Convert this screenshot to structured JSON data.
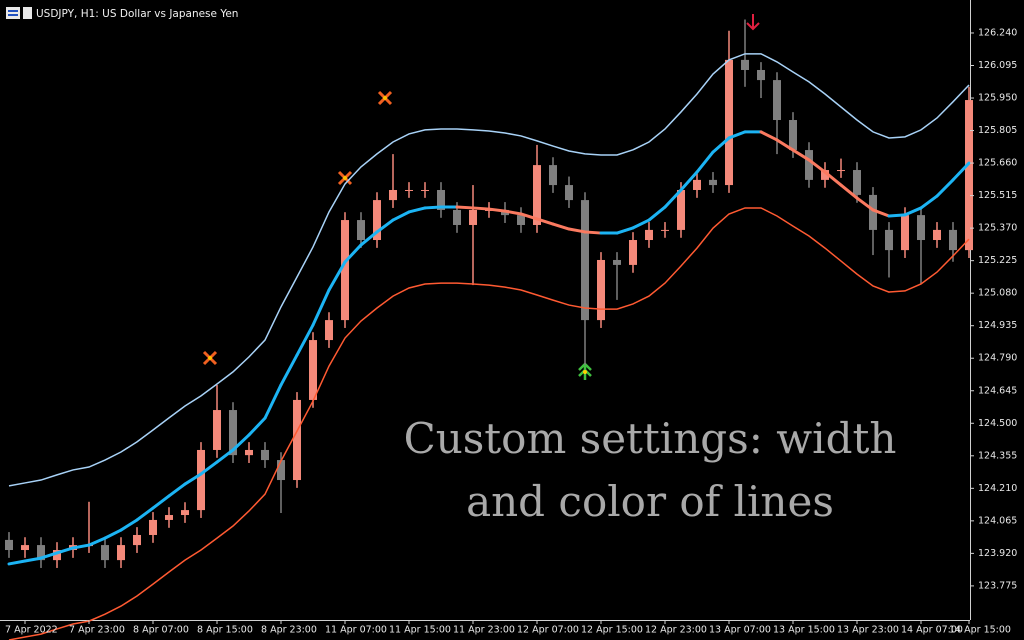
{
  "chart_data": {
    "type": "candlestick",
    "title": "USDJPY, H1:  US Dollar vs Japanese Yen",
    "annotation": [
      "Custom settings: width",
      "and color of lines"
    ],
    "categories": [
      null,
      "7 Apr 2022",
      null,
      null,
      null,
      "7 Apr 23:00",
      null,
      null,
      null,
      "8 Apr 07:00",
      null,
      null,
      null,
      "8 Apr 15:00",
      null,
      null,
      null,
      "8 Apr 23:00",
      null,
      null,
      null,
      "11 Apr 07:00",
      null,
      null,
      null,
      "11 Apr 15:00",
      null,
      null,
      null,
      "11 Apr 23:00",
      null,
      null,
      null,
      "12 Apr 07:00",
      null,
      null,
      null,
      "12 Apr 15:00",
      null,
      null,
      null,
      "12 Apr 23:00",
      null,
      null,
      null,
      "13 Apr 07:00",
      null,
      null,
      null,
      "13 Apr 15:00",
      null,
      null,
      null,
      "13 Apr 23:00",
      null,
      null,
      null,
      "14 Apr 07:00",
      null,
      null,
      "14 Apr 15:00"
    ],
    "open": [
      123.98,
      123.935,
      123.957,
      123.89,
      123.935,
      123.957,
      123.957,
      123.89,
      123.957,
      124.002,
      124.069,
      124.091,
      124.113,
      124.381,
      124.559,
      124.358,
      124.381,
      124.336,
      124.247,
      124.604,
      124.871,
      124.96,
      125.406,
      125.317,
      125.495,
      125.54,
      125.54,
      125.54,
      125.451,
      125.384,
      125.451,
      125.451,
      125.428,
      125.384,
      125.651,
      125.562,
      125.495,
      124.96,
      125.228,
      125.206,
      125.317,
      125.362,
      125.362,
      125.54,
      125.585,
      125.562,
      126.12,
      126.075,
      126.03,
      125.852,
      125.718,
      125.585,
      125.629,
      125.629,
      125.518,
      125.362,
      125.272,
      125.428,
      125.317,
      125.362,
      125.272
    ],
    "high": [
      124.015,
      123.992,
      123.992,
      123.97,
      123.992,
      124.15,
      123.992,
      123.992,
      124.037,
      124.104,
      124.126,
      124.148,
      124.416,
      124.671,
      124.594,
      124.416,
      124.416,
      124.371,
      124.639,
      124.906,
      124.995,
      125.441,
      125.441,
      125.53,
      125.7,
      125.575,
      125.575,
      125.575,
      125.486,
      125.562,
      125.486,
      125.486,
      125.463,
      125.741,
      125.686,
      125.6,
      125.53,
      125.263,
      125.263,
      125.352,
      125.397,
      125.397,
      125.575,
      125.62,
      125.62,
      126.25,
      126.3,
      126.11,
      126.065,
      125.887,
      125.753,
      125.664,
      125.68,
      125.664,
      125.553,
      125.397,
      125.463,
      125.463,
      125.397,
      125.397,
      126.0
    ],
    "low": [
      123.9,
      123.9,
      123.855,
      123.855,
      123.9,
      123.922,
      123.855,
      123.855,
      123.922,
      123.967,
      124.034,
      124.056,
      124.078,
      124.346,
      124.323,
      124.323,
      124.301,
      124.1,
      124.212,
      124.569,
      124.836,
      124.925,
      125.282,
      125.282,
      125.46,
      125.505,
      125.505,
      125.416,
      125.349,
      125.116,
      125.416,
      125.393,
      125.349,
      125.349,
      125.527,
      125.46,
      124.76,
      124.925,
      125.05,
      125.171,
      125.282,
      125.327,
      125.327,
      125.505,
      125.527,
      125.527,
      126.0,
      125.95,
      125.7,
      125.683,
      125.55,
      125.55,
      125.594,
      125.483,
      125.25,
      125.15,
      125.237,
      125.12,
      125.282,
      125.22,
      125.237
    ],
    "close": [
      123.935,
      123.957,
      123.89,
      123.935,
      123.957,
      123.957,
      123.89,
      123.957,
      124.002,
      124.069,
      124.091,
      124.113,
      124.381,
      124.559,
      124.358,
      124.381,
      124.336,
      124.247,
      124.604,
      124.871,
      124.96,
      125.406,
      125.317,
      125.495,
      125.54,
      125.54,
      125.54,
      125.451,
      125.384,
      125.451,
      125.451,
      125.428,
      125.384,
      125.651,
      125.562,
      125.495,
      124.96,
      125.228,
      125.206,
      125.317,
      125.362,
      125.362,
      125.54,
      125.585,
      125.562,
      126.12,
      126.075,
      126.03,
      125.852,
      125.718,
      125.585,
      125.629,
      125.629,
      125.518,
      125.362,
      125.272,
      125.428,
      125.317,
      125.362,
      125.272,
      125.941
    ],
    "up_color": "#f4897a",
    "down_color": "#7f7f7f",
    "lines": [
      {
        "color": "#a8d2f7",
        "width": 1.5,
        "values": [
          124.221,
          124.234,
          124.247,
          124.27,
          124.292,
          124.305,
          124.336,
          124.372,
          124.417,
          124.47,
          124.524,
          124.577,
          124.622,
          124.675,
          124.729,
          124.796,
          124.871,
          125.019,
          125.152,
          125.286,
          125.442,
          125.567,
          125.643,
          125.701,
          125.754,
          125.79,
          125.808,
          125.812,
          125.812,
          125.808,
          125.803,
          125.794,
          125.781,
          125.759,
          125.736,
          125.714,
          125.701,
          125.696,
          125.696,
          125.719,
          125.754,
          125.812,
          125.888,
          125.968,
          126.057,
          126.12,
          126.147,
          126.147,
          126.111,
          126.066,
          126.022,
          125.968,
          125.91,
          125.852,
          125.799,
          125.772,
          125.777,
          125.808,
          125.861,
          125.933,
          126.008
        ]
      },
      {
        "colors": [
          "#1cb4f4",
          "#fb7a60"
        ],
        "width": 3,
        "values": [
          123.873,
          123.886,
          123.899,
          123.922,
          123.944,
          123.957,
          123.988,
          124.024,
          124.069,
          124.122,
          124.176,
          124.229,
          124.274,
          124.327,
          124.381,
          124.448,
          124.523,
          124.671,
          124.804,
          124.938,
          125.094,
          125.219,
          125.295,
          125.353,
          125.406,
          125.442,
          125.46,
          125.464,
          125.464,
          125.46,
          125.455,
          125.446,
          125.433,
          125.411,
          125.388,
          125.366,
          125.353,
          125.348,
          125.348,
          125.371,
          125.406,
          125.464,
          125.54,
          125.62,
          125.709,
          125.772,
          125.799,
          125.799,
          125.763,
          125.718,
          125.674,
          125.62,
          125.562,
          125.504,
          125.451,
          125.424,
          125.429,
          125.46,
          125.513,
          125.585,
          125.66
        ]
      },
      {
        "color": "#ff5a32",
        "width": 1.5,
        "values": [
          123.534,
          123.547,
          123.56,
          123.583,
          123.605,
          123.618,
          123.649,
          123.685,
          123.73,
          123.783,
          123.837,
          123.89,
          123.935,
          123.988,
          124.042,
          124.109,
          124.184,
          124.332,
          124.465,
          124.599,
          124.755,
          124.88,
          124.956,
          125.014,
          125.067,
          125.103,
          125.121,
          125.125,
          125.125,
          125.121,
          125.116,
          125.107,
          125.094,
          125.072,
          125.049,
          125.027,
          125.014,
          125.009,
          125.009,
          125.032,
          125.067,
          125.125,
          125.201,
          125.281,
          125.37,
          125.433,
          125.46,
          125.46,
          125.424,
          125.379,
          125.335,
          125.281,
          125.223,
          125.165,
          125.112,
          125.085,
          125.09,
          125.121,
          125.174,
          125.246,
          125.321
        ]
      }
    ],
    "ylim": [
      123.623,
      126.387
    ],
    "yticks": [
      {
        "value": 126.24,
        "label": "126.240"
      },
      126.095,
      {
        "value": 125.95,
        "label": "125.950"
      },
      125.805,
      {
        "value": 125.66,
        "label": "125.660"
      },
      125.515,
      {
        "value": 125.37,
        "label": "125.370"
      },
      125.225,
      {
        "value": 125.08,
        "label": "125.080"
      },
      124.935,
      {
        "value": 124.79,
        "label": "124.790"
      },
      124.645,
      {
        "value": 124.5,
        "label": "124.500"
      },
      124.355,
      {
        "value": 124.21,
        "label": "124.210"
      },
      124.065,
      {
        "value": 123.92,
        "label": "123.920"
      },
      123.775
    ],
    "grid": false
  }
}
